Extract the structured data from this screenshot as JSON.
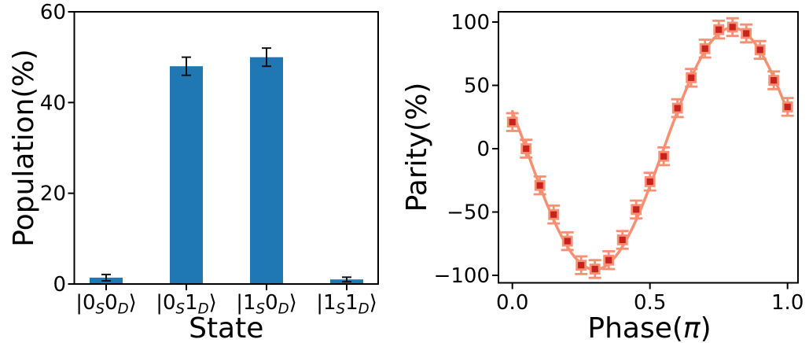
{
  "figure": {
    "background": "#ffffff",
    "panels": 2
  },
  "chart_data": [
    {
      "type": "bar",
      "title": "",
      "xlabel": "State",
      "ylabel": "Population(%)",
      "categories": [
        "|0_S 0_D⟩",
        "|0_S 1_D⟩",
        "|1_S 0_D⟩",
        "|1_S 1_D⟩"
      ],
      "categories_rich": [
        [
          [
            "|0",
            "n"
          ],
          [
            "S",
            "s"
          ],
          [
            "0",
            "n"
          ],
          [
            "D",
            "s"
          ],
          [
            "⟩",
            "n"
          ]
        ],
        [
          [
            "|0",
            "n"
          ],
          [
            "S",
            "s"
          ],
          [
            "1",
            "n"
          ],
          [
            "D",
            "s"
          ],
          [
            "⟩",
            "n"
          ]
        ],
        [
          [
            "|1",
            "n"
          ],
          [
            "S",
            "s"
          ],
          [
            "0",
            "n"
          ],
          [
            "D",
            "s"
          ],
          [
            "⟩",
            "n"
          ]
        ],
        [
          [
            "|1",
            "n"
          ],
          [
            "S",
            "s"
          ],
          [
            "1",
            "n"
          ],
          [
            "D",
            "s"
          ],
          [
            "⟩",
            "n"
          ]
        ]
      ],
      "values": [
        1.4,
        48,
        50,
        1.0
      ],
      "errors": [
        0.7,
        2,
        2,
        0.5
      ],
      "ylim": [
        0,
        60
      ],
      "yticks": [
        0,
        20,
        40,
        60
      ],
      "ytick_labels": [
        "0",
        "20",
        "40",
        "60"
      ],
      "grid": false,
      "legend": "none",
      "bar_color": "#1f77b4",
      "errorbar_color": "#111111"
    },
    {
      "type": "scatter",
      "title": "",
      "xlabel": "Phase(π)",
      "xlabel_rich": [
        [
          "Phase(",
          "n"
        ],
        [
          "π",
          "i"
        ],
        [
          ")",
          "n"
        ]
      ],
      "ylabel": "Parity(%)",
      "x": [
        0.0,
        0.05,
        0.1,
        0.15,
        0.2,
        0.25,
        0.3,
        0.35,
        0.4,
        0.45,
        0.5,
        0.55,
        0.6,
        0.65,
        0.7,
        0.75,
        0.8,
        0.85,
        0.9,
        0.95,
        1.0
      ],
      "y": [
        21,
        0,
        -29,
        -52,
        -73,
        -92,
        -95,
        -88,
        -72,
        -48,
        -26,
        -6,
        32,
        56,
        79,
        94,
        96,
        91,
        78,
        54,
        33
      ],
      "yerr": 7,
      "fit_curve": {
        "model": "y = -95.5·sin(2π(x−0.05))",
        "amplitude": 95.5,
        "x_zero_falling": 0.05,
        "period_in_pi": 1.0
      },
      "xlim": [
        -0.053,
        1.038
      ],
      "ylim": [
        -106,
        108
      ],
      "xticks": [
        0,
        0.5,
        1
      ],
      "xtick_labels": [
        "0.0",
        "0.5",
        "1.0"
      ],
      "yticks": [
        100,
        50,
        0,
        -50,
        -100
      ],
      "ytick_labels": [
        "100",
        "50",
        "0",
        "−50",
        "−100"
      ],
      "grid": false,
      "legend": "none",
      "marker": "square",
      "marker_color": "#c8221f",
      "line_color": "#f78f73"
    }
  ]
}
